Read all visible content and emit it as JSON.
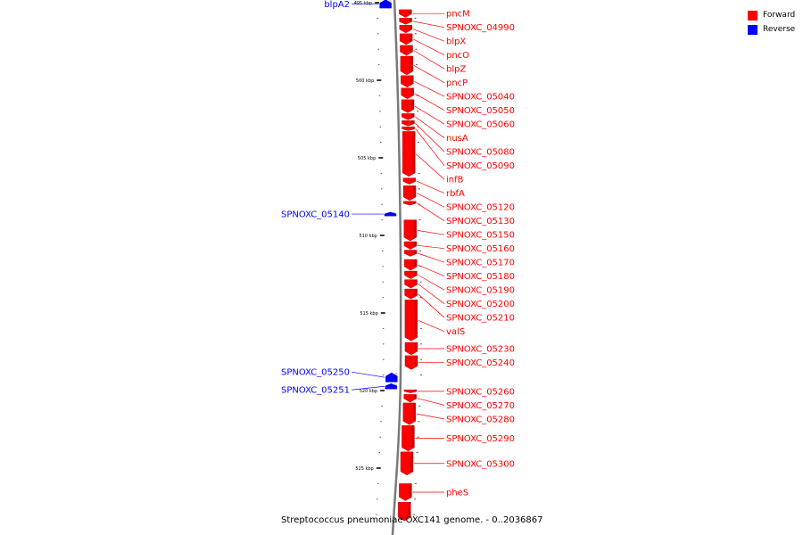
{
  "colors": {
    "forward": "#ff0000",
    "reverse": "#0000ff",
    "backbone": "#7a7a7a",
    "ticks": "#000000"
  },
  "legend": [
    {
      "label": "Forward",
      "color": "#ff0000"
    },
    {
      "label": "Reverse",
      "color": "#0000ff"
    }
  ],
  "caption": "Streptococcus pneumoniae OXC141 genome. - 0..2036867",
  "axis": {
    "unit": "kbp",
    "view_start_kbp": 495,
    "view_end_kbp": 528.4,
    "major_ticks": [
      {
        "kbp": 495,
        "label": "495 kbp"
      },
      {
        "kbp": 500,
        "label": "500 kbp"
      },
      {
        "kbp": 505,
        "label": "505 kbp"
      },
      {
        "kbp": 510,
        "label": "510 kbp"
      },
      {
        "kbp": 515,
        "label": "515 kbp"
      },
      {
        "kbp": 520,
        "label": "520 kbp"
      },
      {
        "kbp": 525,
        "label": "525 kbp"
      }
    ],
    "minor_step_kbp": 1
  },
  "genes": [
    {
      "name": "blpA2",
      "strand": "reverse",
      "start": 494.8,
      "end": 495.35
    },
    {
      "name": "pncM",
      "strand": "forward",
      "start": 495.45,
      "end": 495.95
    },
    {
      "name": "SPNOXC_04990",
      "strand": "forward",
      "start": 496.0,
      "end": 496.4
    },
    {
      "name": "blpX",
      "strand": "forward",
      "start": 496.45,
      "end": 496.95
    },
    {
      "name": "pncO",
      "strand": "forward",
      "start": 497.0,
      "end": 497.7
    },
    {
      "name": "blpZ",
      "strand": "forward",
      "start": 497.75,
      "end": 498.4
    },
    {
      "name": "pncP",
      "strand": "forward",
      "start": 498.45,
      "end": 499.65
    },
    {
      "name": "SPNOXC_05040",
      "strand": "forward",
      "start": 499.7,
      "end": 500.45
    },
    {
      "name": "SPNOXC_05050",
      "strand": "forward",
      "start": 500.5,
      "end": 501.2
    },
    {
      "name": "SPNOXC_05060",
      "strand": "forward",
      "start": 501.25,
      "end": 502.1
    },
    {
      "name": "nusA",
      "strand": "forward",
      "start": 502.15,
      "end": 502.55
    },
    {
      "name": "SPNOXC_05080",
      "strand": "forward",
      "start": 502.6,
      "end": 502.95
    },
    {
      "name": "SPNOXC_05090",
      "strand": "forward",
      "start": 503.0,
      "end": 503.25
    },
    {
      "name": "infB",
      "strand": "forward",
      "start": 503.3,
      "end": 506.2
    },
    {
      "name": "rbfA",
      "strand": "forward",
      "start": 506.3,
      "end": 506.7
    },
    {
      "name": "SPNOXC_05120",
      "strand": "forward",
      "start": 506.8,
      "end": 507.75
    },
    {
      "name": "SPNOXC_05130",
      "strand": "forward",
      "start": 507.8,
      "end": 508.05
    },
    {
      "name": "SPNOXC_05140",
      "strand": "reverse",
      "start": 508.5,
      "end": 508.75
    },
    {
      "name": "SPNOXC_05150",
      "strand": "forward",
      "start": 509.0,
      "end": 510.35
    },
    {
      "name": "SPNOXC_05160",
      "strand": "forward",
      "start": 510.4,
      "end": 510.9
    },
    {
      "name": "SPNOXC_05170",
      "strand": "forward",
      "start": 510.95,
      "end": 511.35
    },
    {
      "name": "SPNOXC_05180",
      "strand": "forward",
      "start": 511.55,
      "end": 512.25
    },
    {
      "name": "SPNOXC_05190",
      "strand": "forward",
      "start": 512.3,
      "end": 512.8
    },
    {
      "name": "SPNOXC_05200",
      "strand": "forward",
      "start": 512.85,
      "end": 513.4
    },
    {
      "name": "SPNOXC_05210",
      "strand": "forward",
      "start": 513.45,
      "end": 514.1
    },
    {
      "name": "valS",
      "strand": "forward",
      "start": 514.15,
      "end": 516.8
    },
    {
      "name": "SPNOXC_05230",
      "strand": "forward",
      "start": 516.9,
      "end": 517.7
    },
    {
      "name": "SPNOXC_05240",
      "strand": "forward",
      "start": 517.75,
      "end": 518.65
    },
    {
      "name": "SPNOXC_05250",
      "strand": "reverse",
      "start": 518.85,
      "end": 519.45
    },
    {
      "name": "SPNOXC_05251",
      "strand": "reverse",
      "start": 519.55,
      "end": 519.9
    },
    {
      "name": "SPNOXC_05260",
      "strand": "forward",
      "start": 519.95,
      "end": 520.15
    },
    {
      "name": "SPNOXC_05270",
      "strand": "forward",
      "start": 520.25,
      "end": 520.75
    },
    {
      "name": "SPNOXC_05280",
      "strand": "forward",
      "start": 520.8,
      "end": 522.2
    },
    {
      "name": "SPNOXC_05290",
      "strand": "forward",
      "start": 522.25,
      "end": 523.9
    },
    {
      "name": "SPNOXC_05300",
      "strand": "forward",
      "start": 523.95,
      "end": 525.45
    },
    {
      "name": "pheS",
      "strand": "forward",
      "start": 526.0,
      "end": 527.1
    },
    {
      "name": "",
      "strand": "forward",
      "start": 527.2,
      "end": 528.4
    }
  ]
}
